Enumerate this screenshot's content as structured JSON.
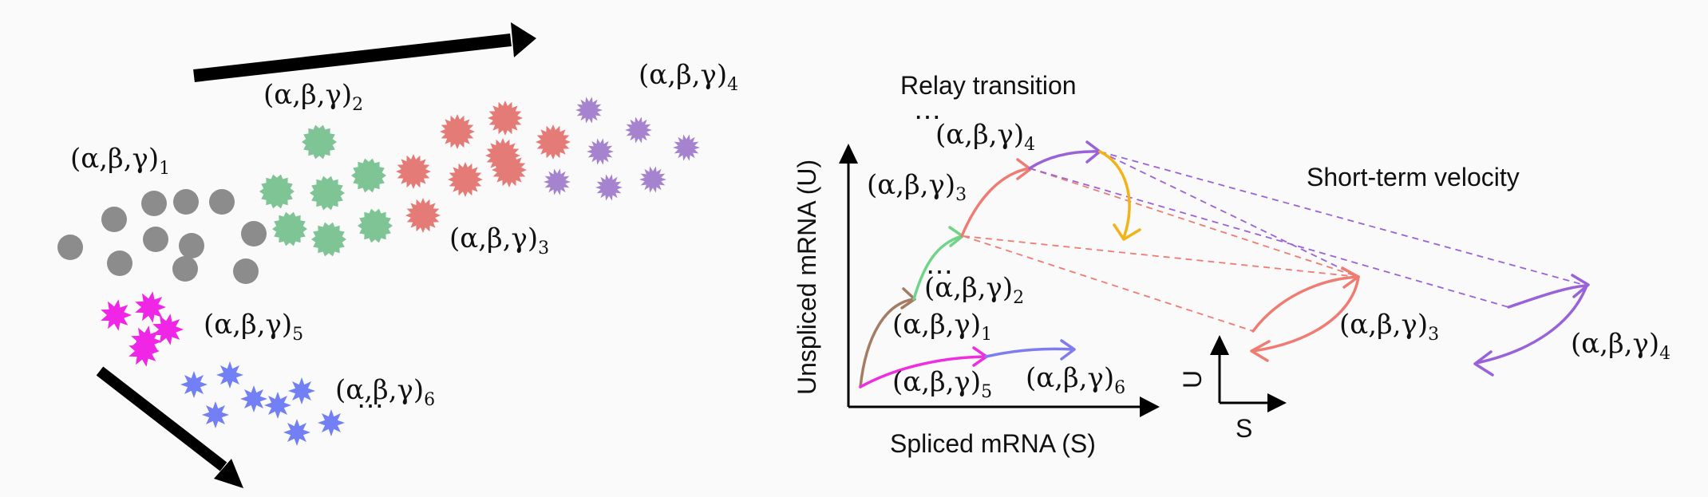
{
  "parameter_set_label": "(α,β,γ)",
  "subscripts": {
    "s1": "1",
    "s2": "2",
    "s3": "3",
    "s4": "4",
    "s5": "5",
    "s6": "6"
  },
  "ellipsis": "⋯",
  "titles": {
    "relay": "Relay transition",
    "short_term": "Short-term velocity"
  },
  "axes": {
    "y_label": "Unspliced mRNA (U)",
    "x_label": "Spliced mRNA (S)",
    "mini_u": "U",
    "mini_s": "S"
  },
  "colors": {
    "stage1": "#8c8c8c",
    "stage2": "#7ec494",
    "stage3": "#e47b76",
    "stage4": "#a683cf",
    "stage5": "#f026e6",
    "stage6": "#7380f5",
    "arrow_brown": "#a47b63",
    "arrow_green": "#6fd488",
    "arrow_salmon": "#ef7b72",
    "arrow_purple": "#9a62d8",
    "arrow_magenta": "#ee2fdf",
    "arrow_blue": "#7f7cf0",
    "arrow_yellow": "#f2b21a"
  }
}
